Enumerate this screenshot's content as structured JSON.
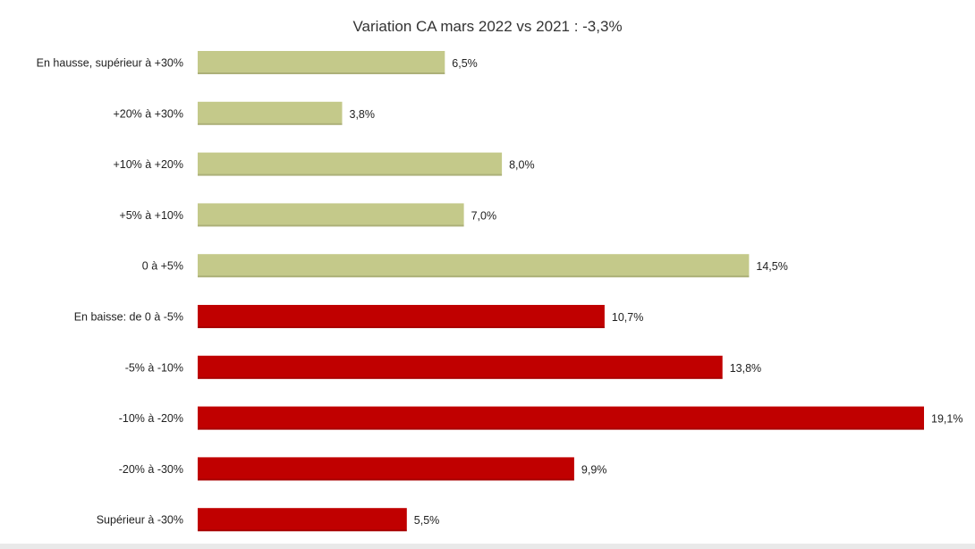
{
  "chart_data": {
    "type": "bar",
    "orientation": "horizontal",
    "title": "Variation CA mars 2022 vs 2021 : -3,3%",
    "xlabel": "",
    "ylabel": "",
    "xlim": [
      0,
      19.1
    ],
    "grid": false,
    "legend": "none",
    "categories": [
      "En hausse, supérieur à +30%",
      "+20% à +30%",
      "+10% à +20%",
      "+5% à +10%",
      "0 à +5%",
      "En baisse: de 0 à -5%",
      "-5% à -10%",
      "-10% à -20%",
      "-20% à -30%",
      "Supérieur à -30%"
    ],
    "values": [
      6.5,
      3.8,
      8.0,
      7.0,
      14.5,
      10.7,
      13.8,
      19.1,
      9.9,
      5.5
    ],
    "value_labels": [
      "6,5%",
      "3,8%",
      "8,0%",
      "7,0%",
      "14,5%",
      "10,7%",
      "13,8%",
      "19,1%",
      "9,9%",
      "5,5%"
    ],
    "bar_colors": [
      "#c4c98a",
      "#c4c98a",
      "#c4c98a",
      "#c4c98a",
      "#c4c98a",
      "#c00000",
      "#c00000",
      "#c00000",
      "#c00000",
      "#c00000"
    ]
  }
}
